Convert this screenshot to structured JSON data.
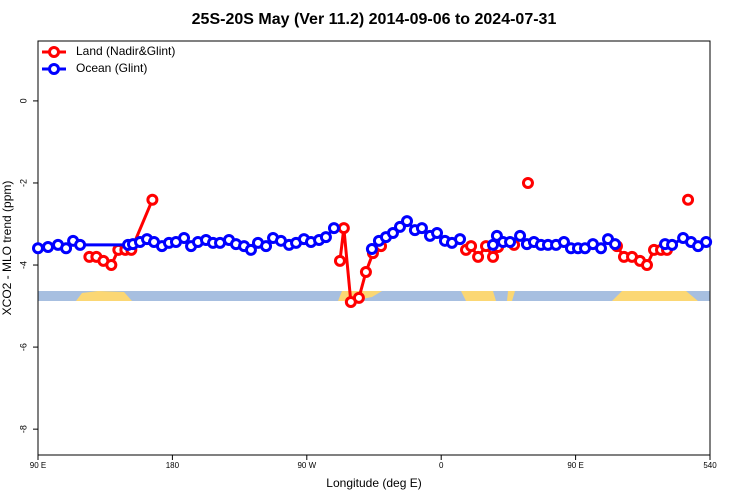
{
  "chart_data": {
    "type": "line",
    "title": "25S-20S May (Ver 11.2)   2014-09-06 to 2024-07-31",
    "x_label": "Longitude (deg E)",
    "y_label": "XCO2 - MLO trend (ppm)",
    "xlim": [
      90,
      540
    ],
    "ylim": [
      -8.63,
      1.46
    ],
    "xticks": [
      {
        "value": 90,
        "label": "90 E"
      },
      180,
      {
        "value": 270,
        "label": "90 W"
      },
      {
        "value": 360,
        "label": "0"
      },
      {
        "value": 450,
        "label": "90 E"
      },
      540
    ],
    "yticks": [
      0,
      -2,
      -4,
      -6,
      -8
    ],
    "legend": "top-left",
    "series": [
      {
        "name": "Land (Nadir&Glint)",
        "color": "#ff0000",
        "x": [
          124.4,
          129.1,
          133.8,
          139.1,
          143.8,
          148.5,
          152.5,
          166.6,
          null,
          292.2,
          294.8,
          299.5,
          304.9,
          309.6,
          314.3,
          319.7,
          null,
          376.6,
          380.0,
          384.7,
          390.0,
          394.7,
          398.1,
          null,
          408.8,
          null,
          418.1,
          null,
          477.7,
          482.4,
          487.8,
          493.1,
          497.8,
          502.5,
          507.2,
          511.2,
          null,
          525.3
        ],
        "values": [
          -3.8,
          -3.8,
          -3.9,
          -4.0,
          -3.63,
          -3.63,
          -3.63,
          -2.41,
          null,
          -3.9,
          -3.1,
          -4.9,
          -4.8,
          -4.17,
          -3.71,
          -3.54,
          null,
          -3.63,
          -3.54,
          -3.8,
          -3.54,
          -3.8,
          -3.56,
          null,
          -3.51,
          null,
          -2.0,
          null,
          -3.54,
          -3.8,
          -3.8,
          -3.9,
          -4.0,
          -3.63,
          -3.63,
          -3.63,
          null,
          -2.41
        ]
      },
      {
        "name": "Ocean (Glint)",
        "color": "#0000ff",
        "x": [
          90,
          96.7,
          103.4,
          108.8,
          113.5,
          118.2,
          150.3,
          153.6,
          158.3,
          163.0,
          167.7,
          173.0,
          177.7,
          182.4,
          187.8,
          192.5,
          197.1,
          202.5,
          207.2,
          211.9,
          217.9,
          222.6,
          228.0,
          232.6,
          237.3,
          242.7,
          247.4,
          252.7,
          258.1,
          262.8,
          268.1,
          272.8,
          278.2,
          282.8,
          288.2,
          null,
          313.6,
          318.3,
          323.0,
          327.7,
          332.4,
          337.1,
          342.4,
          347.1,
          352.5,
          357.2,
          362.5,
          367.2,
          372.6,
          null,
          394.7,
          397.3,
          401.4,
          406.1,
          412.8,
          417.4,
          422.1,
          426.8,
          431.5,
          436.9,
          442.2,
          446.9,
          451.6,
          456.3,
          461.6,
          467.0,
          471.7,
          476.4,
          null,
          509.9,
          514.6,
          522.0,
          527.3,
          532.0,
          537.4
        ],
        "values": [
          -3.59,
          -3.56,
          -3.51,
          -3.59,
          -3.41,
          -3.51,
          -3.51,
          -3.49,
          -3.44,
          -3.37,
          -3.44,
          -3.54,
          -3.46,
          -3.44,
          -3.34,
          -3.54,
          -3.44,
          -3.39,
          -3.46,
          -3.46,
          -3.39,
          -3.49,
          -3.54,
          -3.63,
          -3.46,
          -3.54,
          -3.34,
          -3.41,
          -3.51,
          -3.46,
          -3.37,
          -3.44,
          -3.39,
          -3.32,
          -3.1,
          null,
          -3.61,
          -3.41,
          -3.32,
          -3.22,
          -3.07,
          -2.93,
          -3.15,
          -3.1,
          -3.29,
          -3.22,
          -3.41,
          -3.46,
          -3.37,
          null,
          -3.51,
          -3.29,
          -3.44,
          -3.44,
          -3.29,
          -3.49,
          -3.44,
          -3.51,
          -3.51,
          -3.51,
          -3.44,
          -3.59,
          -3.59,
          -3.59,
          -3.49,
          -3.59,
          -3.37,
          -3.49,
          null,
          -3.49,
          -3.51,
          -3.34,
          -3.44,
          -3.54,
          -3.44
        ]
      }
    ]
  }
}
